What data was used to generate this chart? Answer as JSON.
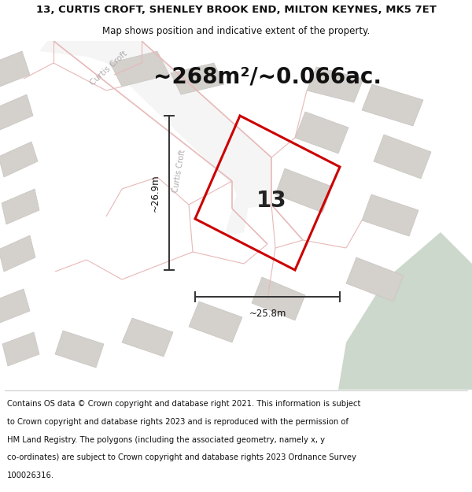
{
  "title_line1": "13, CURTIS CROFT, SHENLEY BROOK END, MILTON KEYNES, MK5 7ET",
  "title_line2": "Map shows position and indicative extent of the property.",
  "area_text": "~268m²/~0.066ac.",
  "width_label": "~25.8m",
  "height_label": "~26.9m",
  "house_number": "13",
  "footer_lines": [
    "Contains OS data © Crown copyright and database right 2021. This information is subject",
    "to Crown copyright and database rights 2023 and is reproduced with the permission of",
    "HM Land Registry. The polygons (including the associated geometry, namely x, y",
    "co-ordinates) are subject to Crown copyright and database rights 2023 Ordnance Survey",
    "100026316."
  ],
  "map_bg": "#edeae6",
  "road_fill": "#f5f5f5",
  "road_edge_color": "#e8b8b8",
  "building_color": "#d4d0cc",
  "building_edge": "#c8c4c0",
  "green_color": "#cdd8cc",
  "plot_line_color": "#cc0000",
  "dim_line_color": "#333333",
  "street_label_color": "#b0aaaa",
  "title_fontsize": 9.5,
  "subtitle_fontsize": 8.5,
  "area_fontsize": 20,
  "dim_fontsize": 8.5,
  "house_num_fontsize": 20,
  "footer_fontsize": 7.2
}
